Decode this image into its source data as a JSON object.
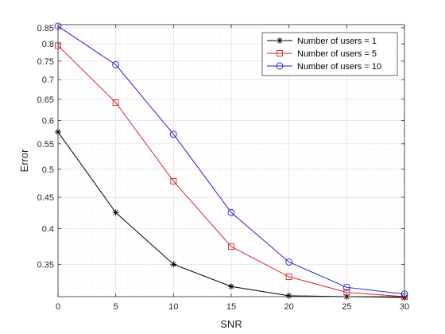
{
  "chart_data": {
    "type": "line",
    "xlabel": "SNR",
    "ylabel": "Error",
    "xlim": [
      0,
      30
    ],
    "ylim": [
      0.31,
      0.86
    ],
    "y_scale": "log",
    "grid": "major and minor",
    "legend_position": "top-right",
    "x_ticks": [
      0,
      5,
      10,
      15,
      20,
      25,
      30
    ],
    "x_tick_labels": [
      "0",
      "5",
      "10",
      "15",
      "20",
      "25",
      "30"
    ],
    "y_ticks": [
      0.35,
      0.4,
      0.45,
      0.5,
      0.55,
      0.6,
      0.65,
      0.7,
      0.75,
      0.8,
      0.85
    ],
    "y_tick_labels": [
      "0.35",
      "0.4",
      "0.45",
      "0.5",
      "0.55",
      "0.6",
      "0.65",
      "0.7",
      "0.75",
      "0.8",
      "0.85"
    ],
    "x": [
      0,
      5,
      10,
      15,
      20,
      25,
      30
    ],
    "series": [
      {
        "name": "Number of users = 1",
        "color": "#000000",
        "marker": "asterisk",
        "values": [
          0.575,
          0.425,
          0.35,
          0.322,
          0.311,
          0.31,
          0.309
        ]
      },
      {
        "name": "Number of users = 5",
        "color": "#d62728",
        "marker": "square",
        "values": [
          0.795,
          0.642,
          0.478,
          0.374,
          0.334,
          0.315,
          0.31
        ]
      },
      {
        "name": "Number of users = 10",
        "color": "#1f1fd6",
        "marker": "circle",
        "values": [
          0.855,
          0.74,
          0.57,
          0.425,
          0.353,
          0.321,
          0.313
        ]
      }
    ]
  }
}
